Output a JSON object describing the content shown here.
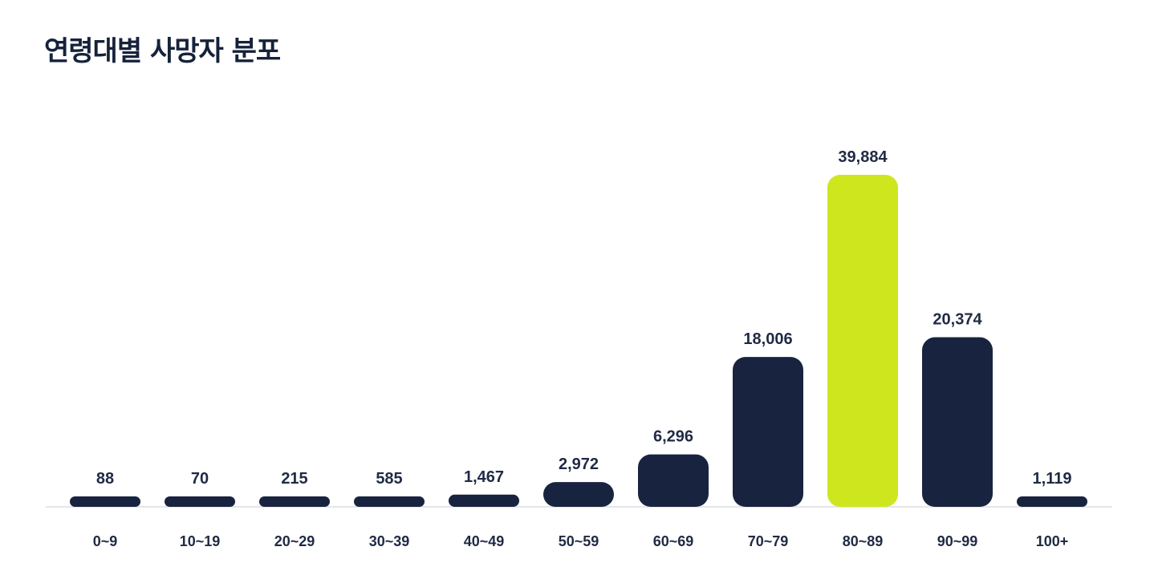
{
  "title": "연령대별 사망자 분포",
  "chart_data": {
    "type": "bar",
    "categories": [
      "0~9",
      "10~19",
      "20~29",
      "30~39",
      "40~49",
      "50~59",
      "60~69",
      "70~79",
      "80~89",
      "90~99",
      "100+"
    ],
    "values": [
      88,
      70,
      215,
      585,
      1467,
      2972,
      6296,
      18006,
      39884,
      20374,
      1119
    ],
    "value_labels": [
      "88",
      "70",
      "215",
      "585",
      "1,467",
      "2,972",
      "6,296",
      "18,006",
      "39,884",
      "20,374",
      "1,119"
    ],
    "title": "연령대별 사망자 분포",
    "xlabel": "",
    "ylabel": "",
    "ylim": [
      0,
      39884
    ],
    "grid": false,
    "legend": "none",
    "colors": {
      "bar": "#18243f",
      "highlight": "#cde61e",
      "baseline": "#e4e6ea",
      "text": "#1f2a44"
    },
    "highlight_index": 8
  }
}
